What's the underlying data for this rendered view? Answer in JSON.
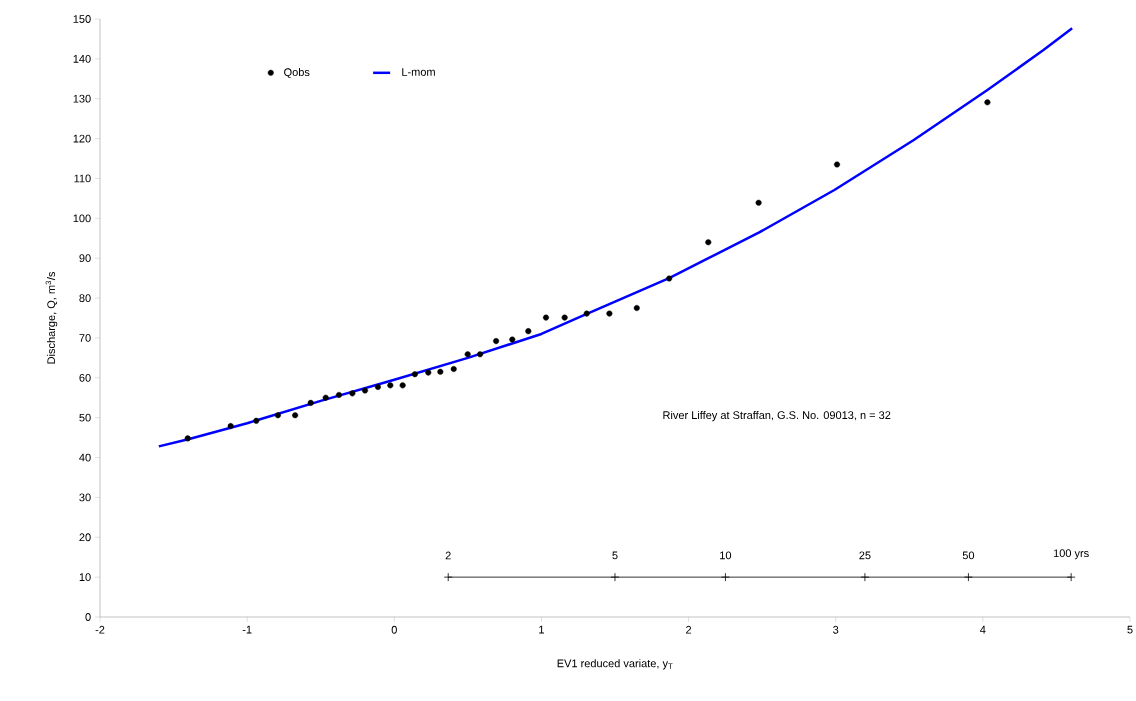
{
  "chart_data": {
    "type": "scatter",
    "xlabel": "EV1 reduced variate, y$_{T}$",
    "ylabel": "Discharge, Q, m$^{3}$/s",
    "xlim": [
      -2,
      5
    ],
    "xticks": [
      -2,
      -1,
      0,
      1,
      2,
      3,
      4,
      5
    ],
    "ylim": [
      0,
      150
    ],
    "yticks": [
      0,
      10,
      20,
      30,
      40,
      50,
      60,
      70,
      80,
      90,
      100,
      110,
      120,
      130,
      140,
      150
    ],
    "grid": false,
    "legend": "top left",
    "series": [
      {
        "name": "Qobs",
        "marker": "circle",
        "color": "#000000",
        "x": [
          -1.404,
          -1.112,
          -0.938,
          -0.791,
          -0.674,
          -0.568,
          -0.466,
          -0.376,
          -0.285,
          -0.199,
          -0.111,
          -0.027,
          0.057,
          0.14,
          0.231,
          0.313,
          0.404,
          0.499,
          0.583,
          0.692,
          0.802,
          0.911,
          1.031,
          1.158,
          1.308,
          1.462,
          1.648,
          1.868,
          2.134,
          2.476,
          3.009,
          4.031
        ],
        "values": [
          44.8,
          47.9,
          49.2,
          50.6,
          50.6,
          53.7,
          55.0,
          55.7,
          56.1,
          56.8,
          57.7,
          58.1,
          58.1,
          60.9,
          61.3,
          61.5,
          62.2,
          65.9,
          65.9,
          69.2,
          69.6,
          71.7,
          75.1,
          75.1,
          76.1,
          76.1,
          77.5,
          84.9,
          94.0,
          103.9,
          113.5,
          129.1
        ]
      },
      {
        "name": "L-mom",
        "type": "line",
        "marker": "none",
        "color": "#0000ff",
        "x": [
          -1.6,
          -1.4,
          -1.0,
          -0.5,
          0,
          0.5,
          1.0,
          1.262,
          1.868,
          2.135,
          2.477,
          2.991,
          3.528,
          4.031,
          4.412,
          4.607
        ],
        "values": [
          42.8,
          44.6,
          48.6,
          54.2,
          59.5,
          65.0,
          71.0,
          75.3,
          85.0,
          90.0,
          96.4,
          107.1,
          119.6,
          132.2,
          142.2,
          147.7
        ]
      },
      {
        "type": "line",
        "marker": "cross",
        "color": "#000000",
        "x": [
          0.3665,
          1.4999,
          2.2504,
          3.1985,
          3.9019,
          4.6001
        ],
        "values": [
          10,
          10,
          10,
          10,
          10,
          10
        ]
      }
    ],
    "annotations": [
      "River Liffey at Straffan, G.S. No. 09013, n = 32",
      {
        "text": "2",
        "x": 0.3665,
        "y": 10
      },
      {
        "text": "5",
        "x": 1.4999,
        "y": 10
      },
      {
        "text": "10",
        "x": 2.2504,
        "y": 10
      },
      {
        "text": "25",
        "x": 3.1985,
        "y": 10
      },
      {
        "text": "50",
        "x": 3.9019,
        "y": 10
      },
      {
        "text": "100 yrs",
        "x": 4.6001,
        "y": 10
      }
    ]
  }
}
